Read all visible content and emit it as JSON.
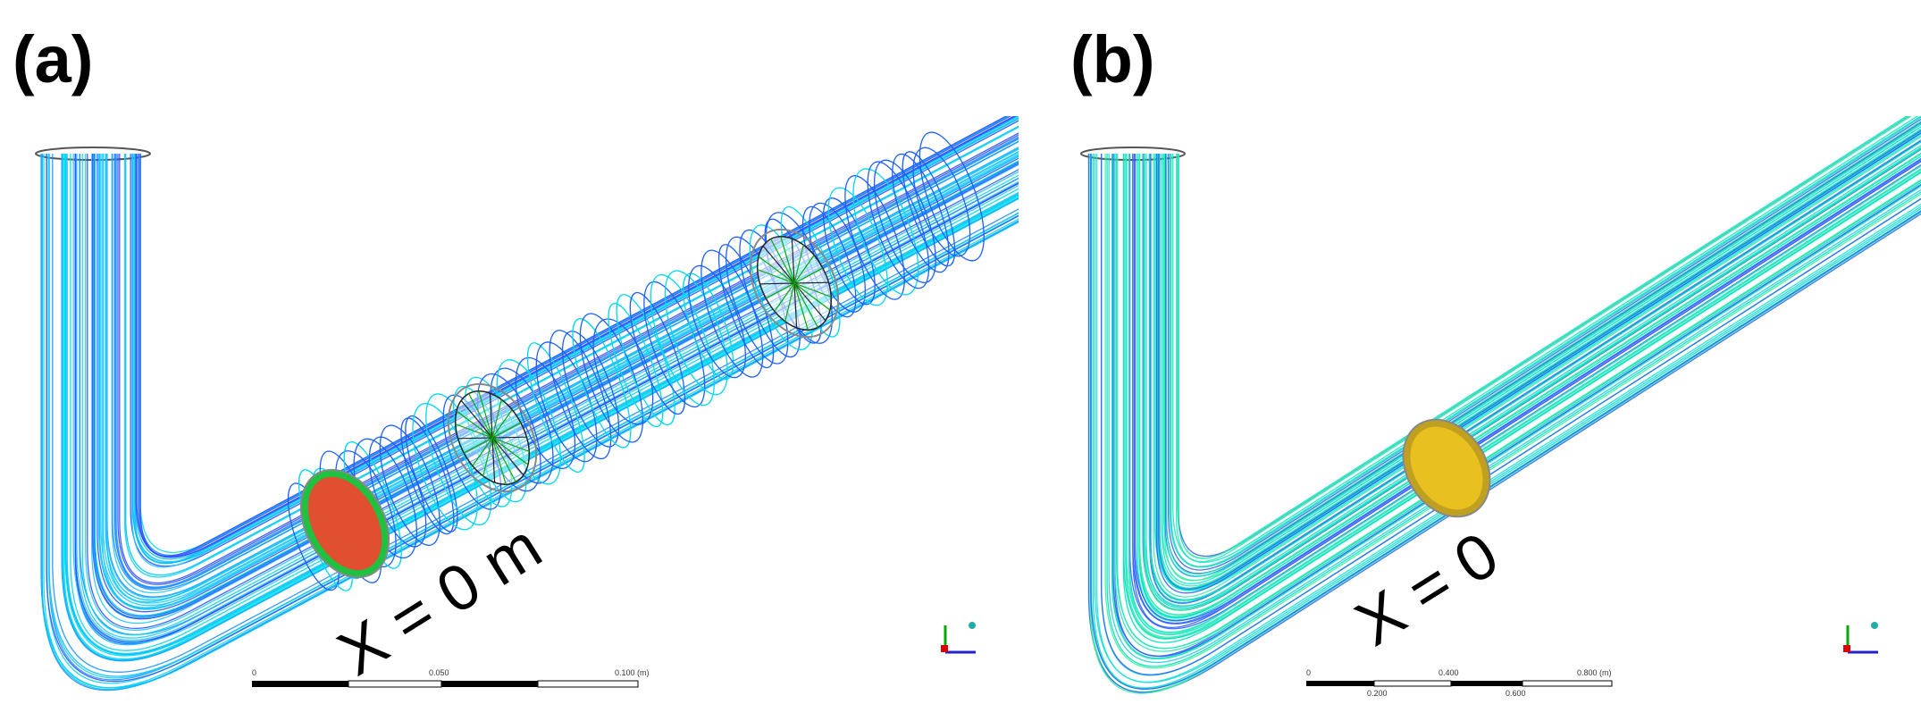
{
  "panels": [
    {
      "label": "(a)",
      "annotation": "X = 0 m",
      "scale_bar": [
        "0",
        "0.050",
        "0.100 (m)"
      ]
    },
    {
      "label": "(b)",
      "annotation": "X = 0",
      "scale_bar": [
        "0",
        "0.400",
        "0.800 (m)"
      ],
      "scale_bar_sub": [
        "0.200",
        "0.600"
      ]
    }
  ]
}
